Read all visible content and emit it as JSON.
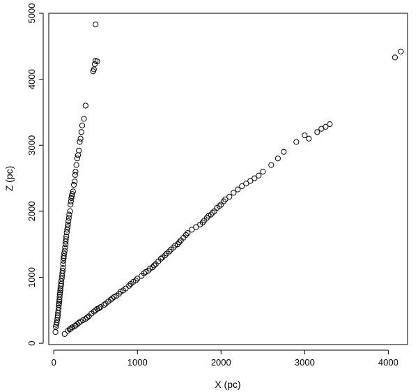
{
  "chart_data": {
    "type": "scatter",
    "xlabel": "X (pc)",
    "ylabel": "Z (pc)",
    "xlim": [
      -60,
      4230
    ],
    "ylim": [
      -20,
      5000
    ],
    "xticks": [
      0,
      1000,
      2000,
      3000,
      4000
    ],
    "yticks": [
      0,
      1000,
      2000,
      3000,
      4000,
      5000
    ],
    "grid": false,
    "series": [
      {
        "points": [
          [
            20,
            170
          ],
          [
            25,
            250
          ],
          [
            30,
            280
          ],
          [
            35,
            310
          ],
          [
            40,
            350
          ],
          [
            45,
            390
          ],
          [
            48,
            420
          ],
          [
            50,
            460
          ],
          [
            55,
            500
          ],
          [
            58,
            540
          ],
          [
            60,
            580
          ],
          [
            62,
            600
          ],
          [
            65,
            630
          ],
          [
            68,
            660
          ],
          [
            70,
            700
          ],
          [
            72,
            740
          ],
          [
            75,
            770
          ],
          [
            78,
            800
          ],
          [
            80,
            830
          ],
          [
            85,
            870
          ],
          [
            88,
            900
          ],
          [
            90,
            940
          ],
          [
            95,
            980
          ],
          [
            100,
            1020
          ],
          [
            102,
            1060
          ],
          [
            105,
            1100
          ],
          [
            110,
            1140
          ],
          [
            112,
            1200
          ],
          [
            115,
            1250
          ],
          [
            118,
            1290
          ],
          [
            120,
            1320
          ],
          [
            125,
            1360
          ],
          [
            130,
            1400
          ],
          [
            135,
            1450
          ],
          [
            140,
            1500
          ],
          [
            142,
            1540
          ],
          [
            145,
            1580
          ],
          [
            150,
            1620
          ],
          [
            155,
            1680
          ],
          [
            160,
            1720
          ],
          [
            165,
            1760
          ],
          [
            170,
            1800
          ],
          [
            175,
            1850
          ],
          [
            180,
            1900
          ],
          [
            185,
            1950
          ],
          [
            195,
            2000
          ],
          [
            200,
            2100
          ],
          [
            205,
            2150
          ],
          [
            210,
            2200
          ],
          [
            215,
            2230
          ],
          [
            220,
            2260
          ],
          [
            230,
            2300
          ],
          [
            240,
            2400
          ],
          [
            250,
            2450
          ],
          [
            255,
            2550
          ],
          [
            260,
            2600
          ],
          [
            270,
            2700
          ],
          [
            280,
            2800
          ],
          [
            290,
            2850
          ],
          [
            300,
            2920
          ],
          [
            310,
            3050
          ],
          [
            320,
            3100
          ],
          [
            330,
            3200
          ],
          [
            340,
            3300
          ],
          [
            360,
            3400
          ],
          [
            380,
            3600
          ],
          [
            470,
            4120
          ],
          [
            480,
            4150
          ],
          [
            490,
            4230
          ],
          [
            500,
            4280
          ],
          [
            520,
            4270
          ],
          [
            500,
            4830
          ],
          [
            130,
            140
          ],
          [
            170,
            190
          ],
          [
            190,
            210
          ],
          [
            200,
            220
          ],
          [
            220,
            240
          ],
          [
            250,
            260
          ],
          [
            260,
            270
          ],
          [
            280,
            290
          ],
          [
            300,
            310
          ],
          [
            320,
            330
          ],
          [
            350,
            350
          ],
          [
            380,
            370
          ],
          [
            400,
            390
          ],
          [
            420,
            410
          ],
          [
            450,
            450
          ],
          [
            480,
            480
          ],
          [
            500,
            500
          ],
          [
            520,
            520
          ],
          [
            540,
            530
          ],
          [
            560,
            550
          ],
          [
            600,
            580
          ],
          [
            620,
            600
          ],
          [
            650,
            630
          ],
          [
            680,
            660
          ],
          [
            700,
            680
          ],
          [
            720,
            700
          ],
          [
            750,
            720
          ],
          [
            780,
            750
          ],
          [
            800,
            780
          ],
          [
            830,
            800
          ],
          [
            860,
            830
          ],
          [
            900,
            870
          ],
          [
            920,
            900
          ],
          [
            950,
            930
          ],
          [
            980,
            950
          ],
          [
            1000,
            980
          ],
          [
            1050,
            1020
          ],
          [
            1080,
            1060
          ],
          [
            1100,
            1080
          ],
          [
            1130,
            1100
          ],
          [
            1150,
            1130
          ],
          [
            1180,
            1150
          ],
          [
            1200,
            1180
          ],
          [
            1220,
            1200
          ],
          [
            1250,
            1240
          ],
          [
            1280,
            1280
          ],
          [
            1300,
            1300
          ],
          [
            1330,
            1330
          ],
          [
            1350,
            1360
          ],
          [
            1380,
            1390
          ],
          [
            1400,
            1420
          ],
          [
            1430,
            1450
          ],
          [
            1450,
            1480
          ],
          [
            1480,
            1500
          ],
          [
            1500,
            1530
          ],
          [
            1520,
            1560
          ],
          [
            1550,
            1600
          ],
          [
            1580,
            1640
          ],
          [
            1600,
            1670
          ],
          [
            1650,
            1720
          ],
          [
            1700,
            1760
          ],
          [
            1750,
            1800
          ],
          [
            1780,
            1830
          ],
          [
            1800,
            1860
          ],
          [
            1830,
            1900
          ],
          [
            1850,
            1930
          ],
          [
            1880,
            1950
          ],
          [
            1900,
            1980
          ],
          [
            1920,
            2000
          ],
          [
            1950,
            2050
          ],
          [
            1980,
            2080
          ],
          [
            2000,
            2100
          ],
          [
            2030,
            2150
          ],
          [
            2050,
            2180
          ],
          [
            2100,
            2220
          ],
          [
            2150,
            2280
          ],
          [
            2200,
            2330
          ],
          [
            2250,
            2380
          ],
          [
            2300,
            2420
          ],
          [
            2350,
            2460
          ],
          [
            2400,
            2500
          ],
          [
            2450,
            2540
          ],
          [
            2500,
            2600
          ],
          [
            2600,
            2700
          ],
          [
            2680,
            2800
          ],
          [
            2750,
            2900
          ],
          [
            2900,
            3050
          ],
          [
            3000,
            3150
          ],
          [
            3050,
            3100
          ],
          [
            3150,
            3200
          ],
          [
            3200,
            3250
          ],
          [
            3250,
            3280
          ],
          [
            3300,
            3320
          ],
          [
            4080,
            4330
          ],
          [
            4150,
            4420
          ]
        ]
      }
    ]
  }
}
